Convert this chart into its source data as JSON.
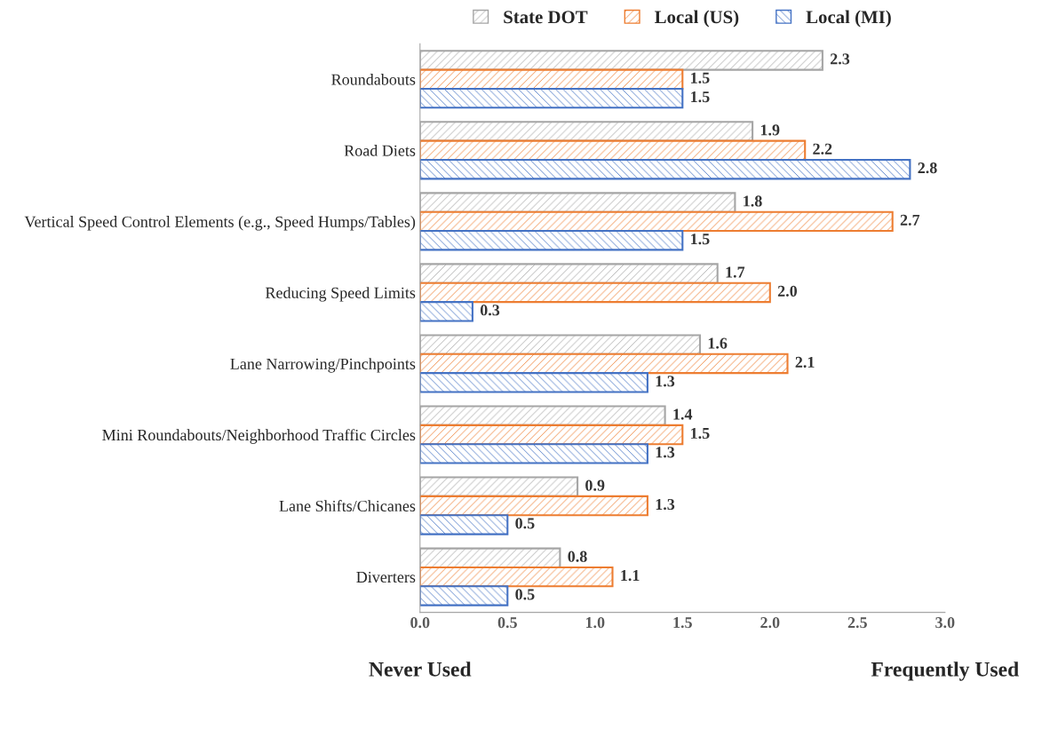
{
  "chart_data": {
    "type": "bar",
    "orientation": "horizontal",
    "categories": [
      "Roundabouts",
      "Road Diets",
      "Vertical Speed Control Elements (e.g., Speed Humps/Tables)",
      "Reducing Speed Limits",
      "Lane Narrowing/Pinchpoints",
      "Mini Roundabouts/Neighborhood Traffic Circles",
      "Lane Shifts/Chicanes",
      "Diverters"
    ],
    "series": [
      {
        "name": "State DOT",
        "color": "#a5a5a5",
        "values": [
          2.3,
          1.9,
          1.8,
          1.7,
          1.6,
          1.4,
          0.9,
          0.8
        ],
        "value_labels": [
          "2.3",
          "1.9",
          "1.8",
          "1.7",
          "1.6",
          "1.4",
          "0.9",
          "0.8"
        ]
      },
      {
        "name": "Local (US)",
        "color": "#ed7d31",
        "values": [
          1.5,
          2.2,
          2.7,
          2.0,
          2.1,
          1.5,
          1.3,
          1.1
        ],
        "value_labels": [
          "1.5",
          "2.2",
          "2.7",
          "2.0",
          "2.1",
          "1.5",
          "1.3",
          "1.1"
        ]
      },
      {
        "name": "Local (MI)",
        "color": "#4472c4",
        "values": [
          1.5,
          2.8,
          1.5,
          0.3,
          1.3,
          1.3,
          0.5,
          0.5
        ],
        "value_labels": [
          "1.5",
          "2.8",
          "1.5",
          "0.3",
          "1.3",
          "1.3",
          "0.5",
          "0.5"
        ]
      }
    ],
    "xlim": [
      0,
      3
    ],
    "xticks": [
      {
        "value": 0,
        "label": "0.0"
      },
      0.5,
      {
        "value": 1,
        "label": "1.0"
      },
      1.5,
      {
        "value": 2,
        "label": "2.0"
      },
      2.5,
      {
        "value": 3,
        "label": "3.0"
      }
    ],
    "legend": "top",
    "grid": false,
    "annotations": [
      "Never Used",
      "Frequently Used"
    ]
  }
}
